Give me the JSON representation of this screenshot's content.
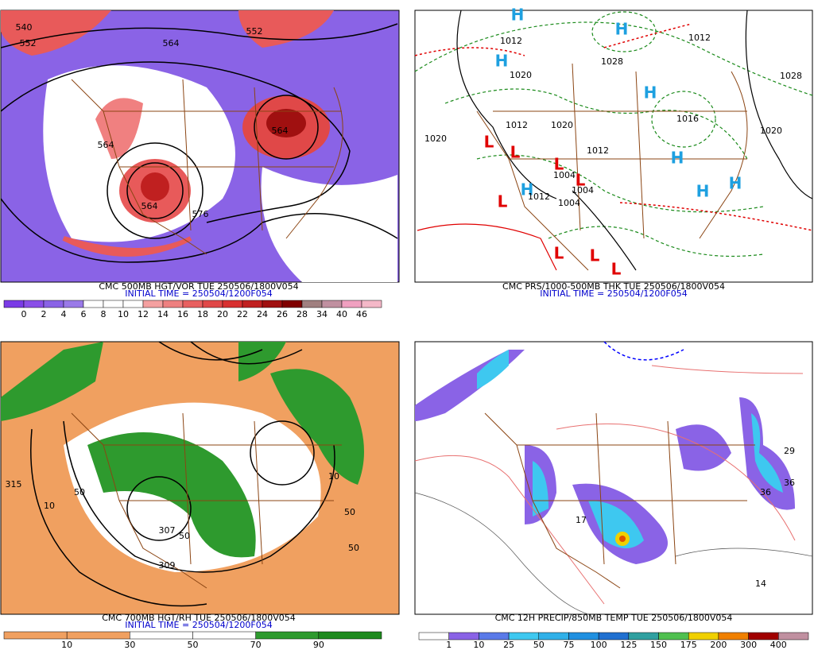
{
  "panels": [
    {
      "caption": "CMC 500MB HGT/VOR TUE 250506/1800V054",
      "initial": "INITIAL TIME = 250504/1200F054",
      "scale": [
        "0",
        "2",
        "4",
        "6",
        "8",
        "10",
        "12",
        "14",
        "16",
        "18",
        "20",
        "22",
        "24",
        "26",
        "28",
        "34",
        "40",
        "46"
      ],
      "labels": [
        "540",
        "552",
        "564",
        "552",
        "564",
        "564",
        "564",
        "576"
      ]
    },
    {
      "caption": "CMC PRS/1000-500MB THK TUE 250506/1800V054",
      "initial": "INITIAL TIME = 250504/1200F054",
      "labels": [
        "H",
        "H",
        "H",
        "H",
        "H",
        "H",
        "H",
        "H",
        "L",
        "L",
        "L",
        "L",
        "L",
        "L",
        "L",
        "L",
        "1012",
        "1012",
        "1020",
        "1028",
        "1028",
        "1020",
        "1012",
        "1020",
        "1012",
        "1004",
        "1004",
        "1004",
        "1012",
        "1020",
        "1016"
      ]
    },
    {
      "caption": "CMC 700MB HGT/RH TUE 250506/1800V054",
      "initial": "INITIAL TIME = 250504/1200F054",
      "scale": [
        "10",
        "30",
        "50",
        "70",
        "90"
      ],
      "labels": [
        "315",
        "10",
        "50",
        "307",
        "309",
        "50",
        "50",
        "10",
        "50"
      ]
    },
    {
      "caption": "CMC 12H PRECIP/850MB TEMP TUE 250506/1800V054",
      "scale": [
        "1",
        "10",
        "25",
        "50",
        "75",
        "100",
        "125",
        "150",
        "175",
        "200",
        "300",
        "400"
      ],
      "labels": [
        "29",
        "36",
        "36",
        "17",
        "14"
      ]
    }
  ]
}
